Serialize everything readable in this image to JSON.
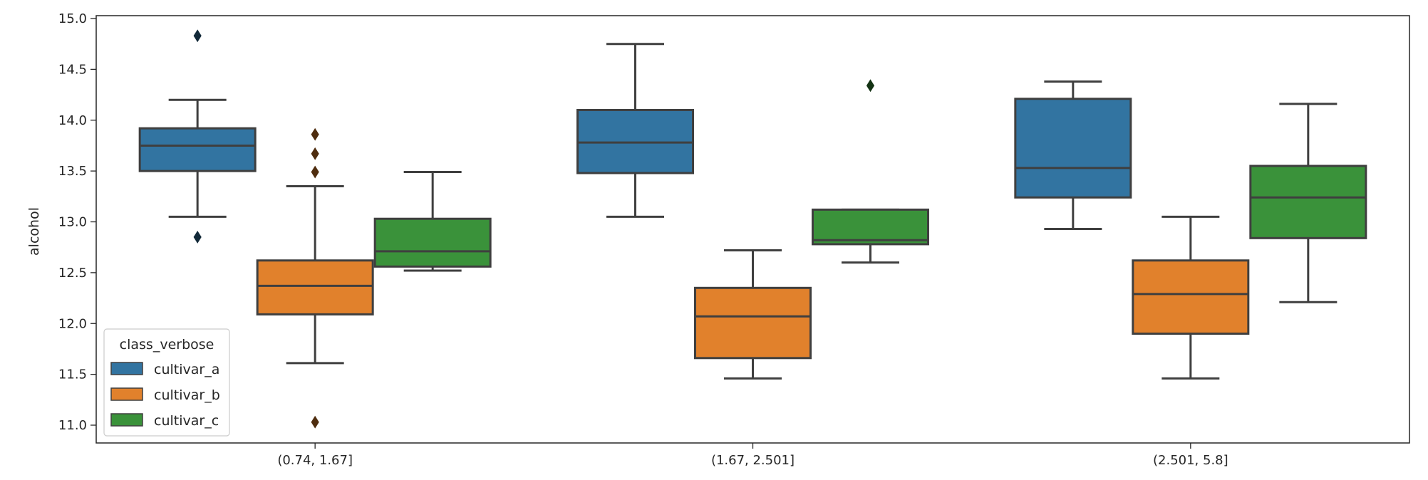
{
  "chart_data": {
    "type": "box",
    "xlabel": "",
    "ylabel": "alcohol",
    "ylim": [
      10.85,
      15.0
    ],
    "yticks": [
      11.0,
      11.5,
      12.0,
      12.5,
      13.0,
      13.5,
      14.0,
      14.5,
      15.0
    ],
    "ytick_labels": [
      "11.0",
      "11.5",
      "12.0",
      "12.5",
      "13.0",
      "13.5",
      "14.0",
      "14.5",
      "15.0"
    ],
    "categories": [
      "(0.74, 1.67]",
      "(1.67, 2.501]",
      "(2.501, 5.8]"
    ],
    "grid": false,
    "legend": {
      "title": "class_verbose",
      "position": "lower-left"
    },
    "series": [
      {
        "name": "cultivar_a",
        "color": "#3274a1",
        "boxes": [
          {
            "whisker_low": 13.05,
            "q1": 13.5,
            "median": 13.75,
            "q3": 13.92,
            "whisker_high": 14.2,
            "outliers": [
              14.83,
              12.85
            ]
          },
          {
            "whisker_low": 13.05,
            "q1": 13.48,
            "median": 13.78,
            "q3": 14.1,
            "whisker_high": 14.75,
            "outliers": []
          },
          {
            "whisker_low": 12.93,
            "q1": 13.24,
            "median": 13.53,
            "q3": 14.21,
            "whisker_high": 14.38,
            "outliers": []
          }
        ]
      },
      {
        "name": "cultivar_b",
        "color": "#e1812c",
        "boxes": [
          {
            "whisker_low": 11.61,
            "q1": 12.09,
            "median": 12.37,
            "q3": 12.62,
            "whisker_high": 13.35,
            "outliers": [
              13.86,
              13.67,
              13.49,
              11.03
            ]
          },
          {
            "whisker_low": 11.46,
            "q1": 11.66,
            "median": 12.07,
            "q3": 12.35,
            "whisker_high": 12.72,
            "outliers": []
          },
          {
            "whisker_low": 11.46,
            "q1": 11.9,
            "median": 12.29,
            "q3": 12.62,
            "whisker_high": 13.05,
            "outliers": []
          }
        ]
      },
      {
        "name": "cultivar_c",
        "color": "#3a923a",
        "boxes": [
          {
            "whisker_low": 12.52,
            "q1": 12.56,
            "median": 12.71,
            "q3": 13.03,
            "whisker_high": 13.49,
            "outliers": []
          },
          {
            "whisker_low": 12.6,
            "q1": 12.78,
            "median": 12.82,
            "q3": 13.12,
            "whisker_high": 13.12,
            "outliers": [
              14.34
            ]
          },
          {
            "whisker_low": 12.21,
            "q1": 12.84,
            "median": 13.24,
            "q3": 13.55,
            "whisker_high": 14.16,
            "outliers": []
          }
        ]
      }
    ]
  }
}
